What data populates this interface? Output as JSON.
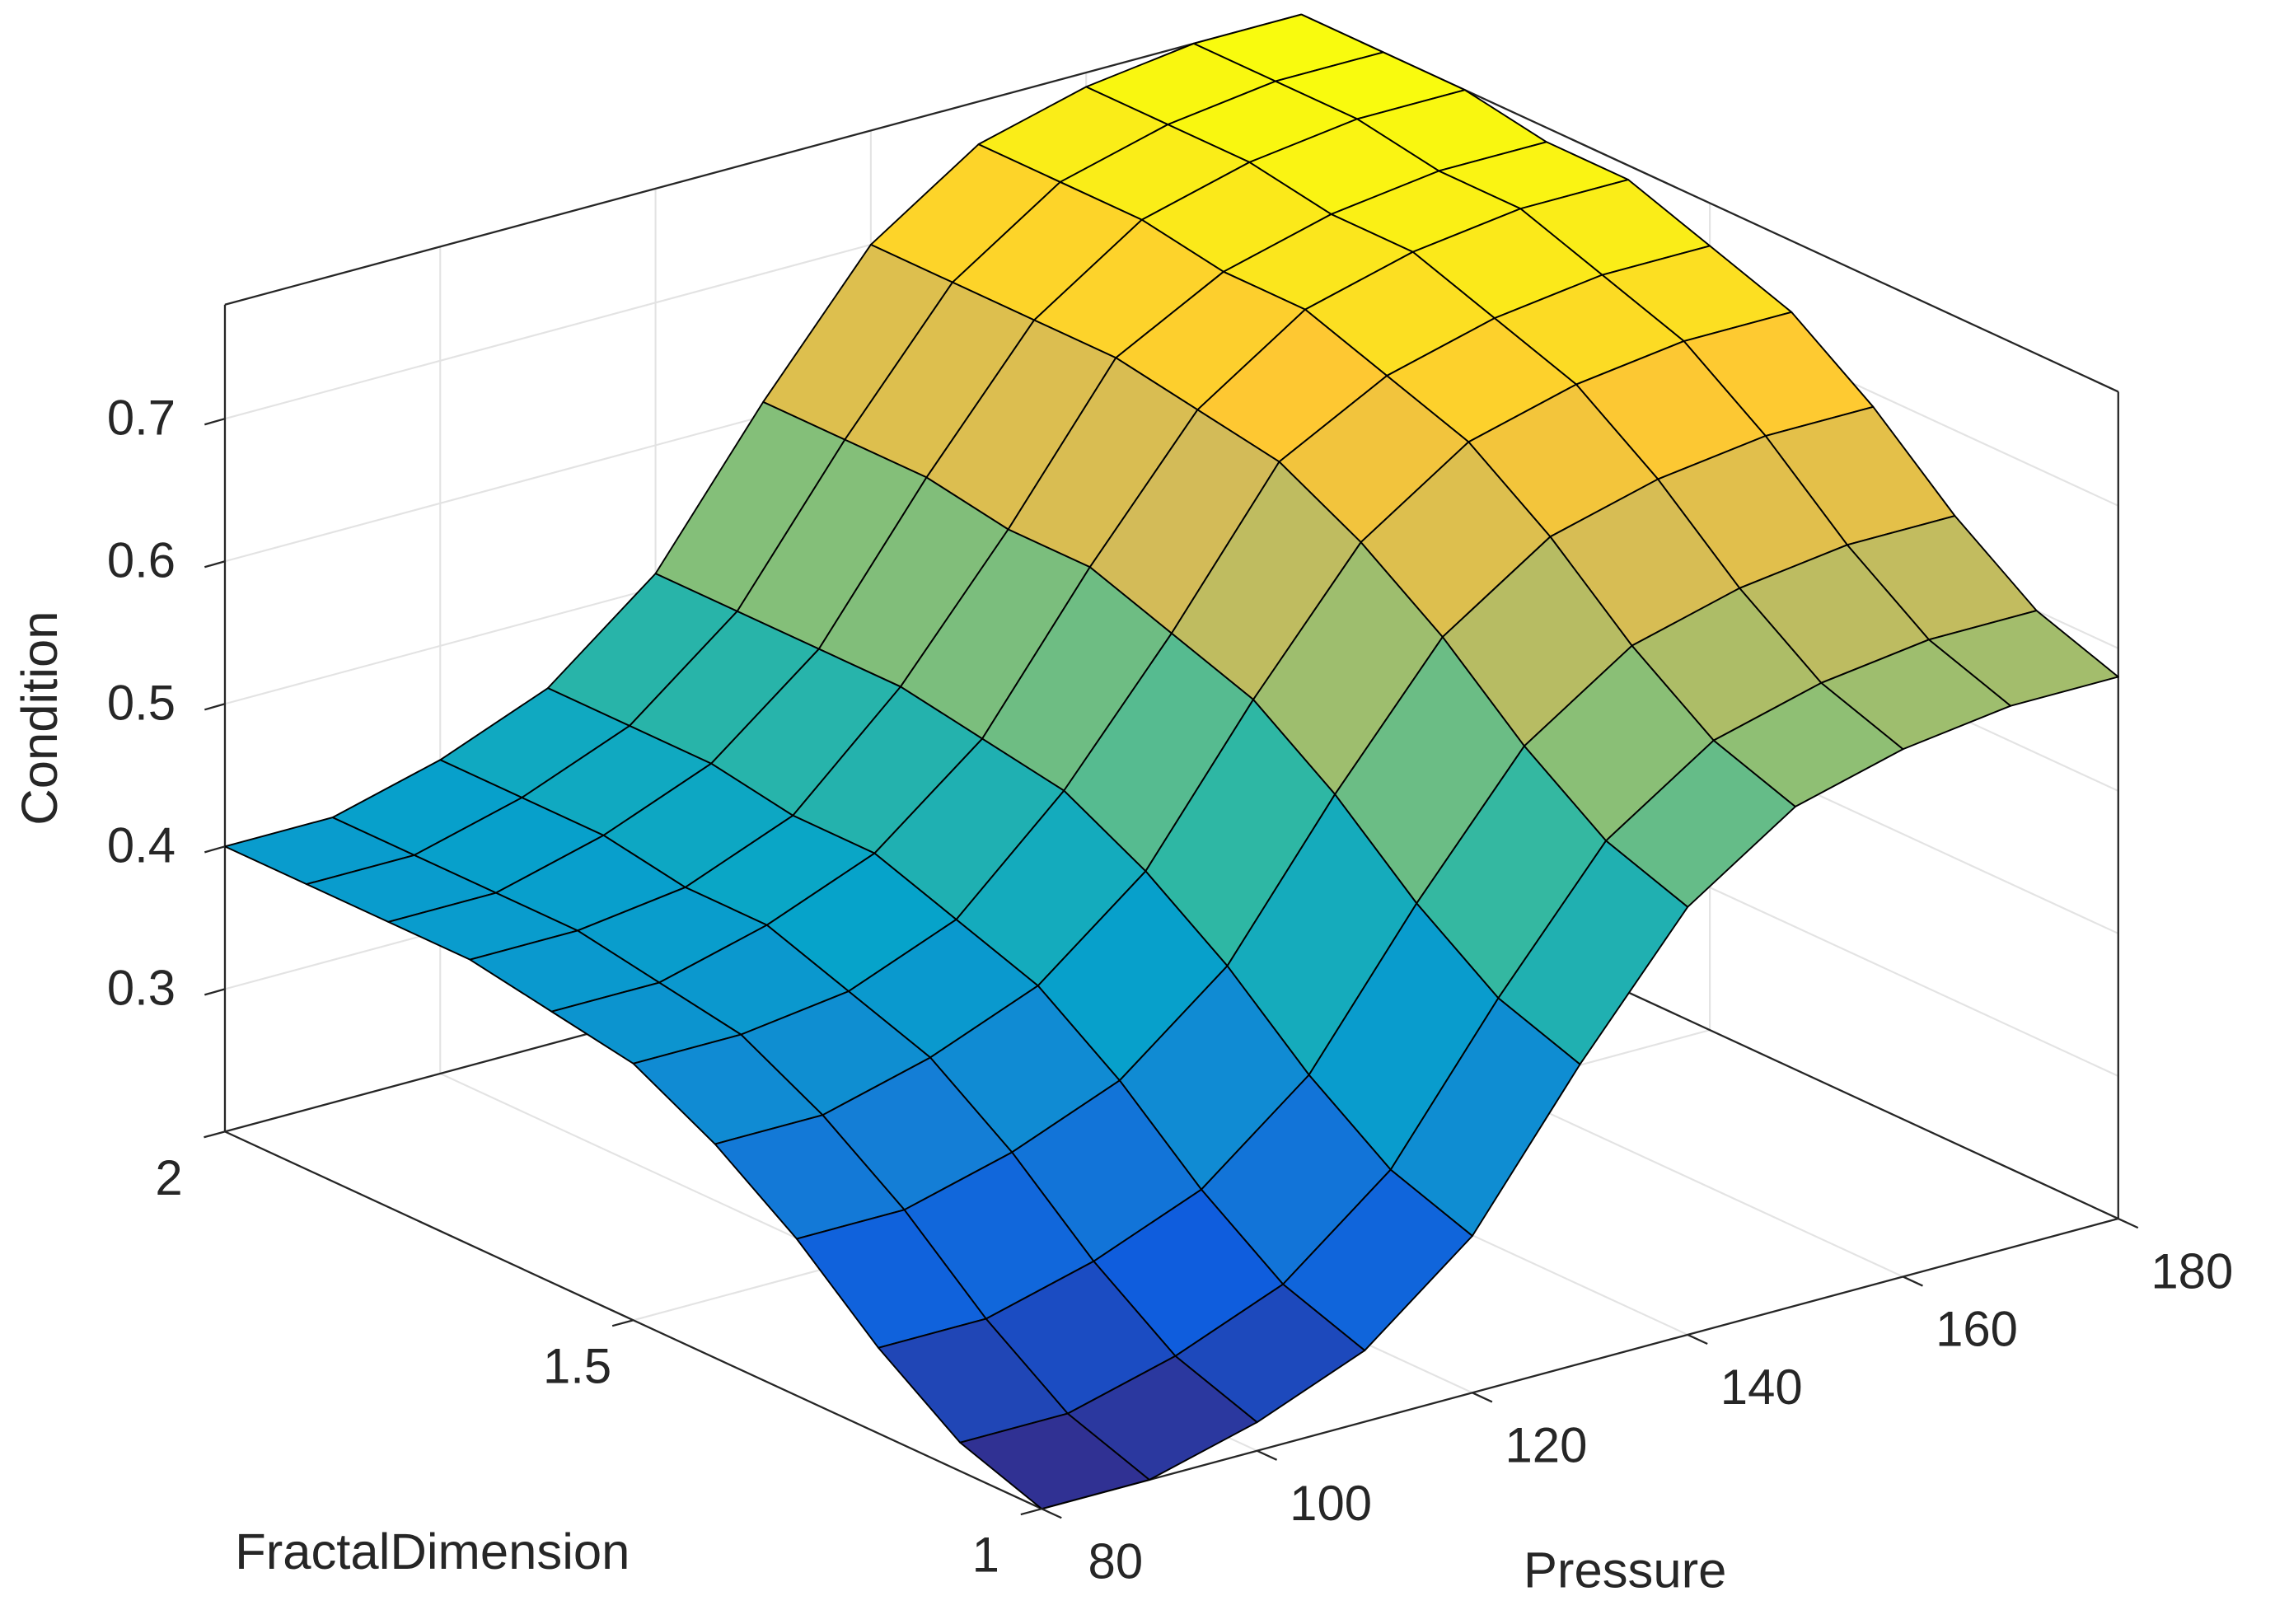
{
  "chart_data": {
    "type": "surface",
    "xlabel": "Pressure",
    "ylabel": "FractalDimension",
    "zlabel": "Condition",
    "x": [
      80,
      90,
      100,
      110,
      120,
      130,
      140,
      150,
      160,
      170,
      180
    ],
    "y": [
      1,
      1.1,
      1.2,
      1.3,
      1.4,
      1.5,
      1.6,
      1.7,
      1.8,
      1.9,
      2
    ],
    "z": [
      [
        0.2,
        0.2,
        0.22,
        0.25,
        0.31,
        0.41,
        0.5,
        0.55,
        0.57,
        0.58,
        0.58
      ],
      [
        0.22,
        0.22,
        0.24,
        0.27,
        0.33,
        0.43,
        0.52,
        0.57,
        0.59,
        0.6,
        0.6
      ],
      [
        0.26,
        0.26,
        0.28,
        0.31,
        0.37,
        0.47,
        0.56,
        0.61,
        0.63,
        0.64,
        0.64
      ],
      [
        0.31,
        0.31,
        0.33,
        0.36,
        0.42,
        0.52,
        0.61,
        0.66,
        0.68,
        0.69,
        0.69
      ],
      [
        0.35,
        0.35,
        0.37,
        0.4,
        0.46,
        0.56,
        0.65,
        0.7,
        0.72,
        0.73,
        0.73
      ],
      [
        0.38,
        0.38,
        0.39,
        0.42,
        0.49,
        0.58,
        0.68,
        0.72,
        0.74,
        0.75,
        0.75
      ],
      [
        0.39,
        0.39,
        0.41,
        0.44,
        0.5,
        0.6,
        0.69,
        0.74,
        0.76,
        0.77,
        0.77
      ],
      [
        0.4,
        0.4,
        0.41,
        0.44,
        0.51,
        0.6,
        0.7,
        0.74,
        0.76,
        0.77,
        0.77
      ],
      [
        0.4,
        0.4,
        0.42,
        0.45,
        0.51,
        0.61,
        0.7,
        0.75,
        0.77,
        0.78,
        0.78
      ],
      [
        0.4,
        0.4,
        0.42,
        0.45,
        0.51,
        0.61,
        0.7,
        0.75,
        0.77,
        0.78,
        0.78
      ],
      [
        0.4,
        0.4,
        0.42,
        0.45,
        0.51,
        0.61,
        0.7,
        0.75,
        0.77,
        0.78,
        0.78
      ]
    ],
    "xlim": [
      80,
      180
    ],
    "ylim": [
      1,
      2
    ],
    "zlim": [
      0.2,
      0.78
    ],
    "xticks": [
      80,
      100,
      120,
      140,
      160,
      180
    ],
    "yticks": [
      1,
      1.5,
      2
    ],
    "zticks": [
      0.3,
      0.4,
      0.5,
      0.6,
      0.7
    ],
    "grid": true,
    "colormap": "parula",
    "edgecolor": "#000000"
  }
}
